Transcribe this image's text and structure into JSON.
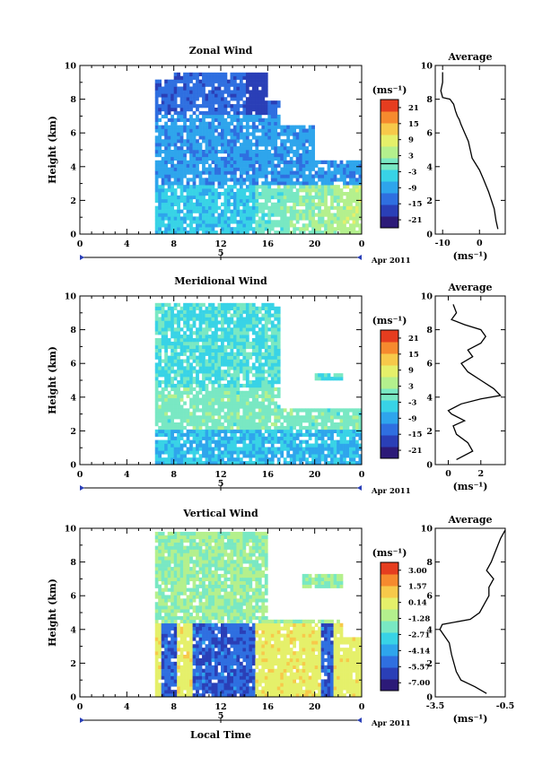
{
  "page": {
    "date_label": "Apr 2011",
    "day_label": "5",
    "xlabel": "Local Time",
    "ylabel": "Height (km)",
    "avg_title": "Average",
    "unit_label": "(ms⁻¹)"
  },
  "palette": [
    "#2c1a78",
    "#2a3fb7",
    "#2f6fe0",
    "#2ea5ec",
    "#38d3e6",
    "#79e8c3",
    "#b4f08d",
    "#e5f06a",
    "#f7c94a",
    "#f68a2e",
    "#e53d1f"
  ],
  "chart_data": [
    {
      "type": "heatmap",
      "title": "Zonal Wind",
      "xlabel": "",
      "ylabel": "Height (km)",
      "xlim": [
        0,
        24
      ],
      "ylim": [
        0,
        10
      ],
      "xticks": [
        "0",
        "4",
        "8",
        "12",
        "16",
        "20",
        "0"
      ],
      "yticks": [
        "0",
        "2",
        "4",
        "6",
        "8",
        "10"
      ],
      "colorbar": {
        "unit": "(ms⁻¹)",
        "ticks": [
          "21",
          "15",
          "9",
          "3",
          "-3",
          "-9",
          "-15",
          "-21"
        ],
        "range": [
          -24,
          24
        ],
        "zero_line": 0
      },
      "profile": {
        "title": "Average",
        "xlim": [
          -12,
          7
        ],
        "xticks": [
          "-10",
          "0"
        ],
        "xtick_values": [
          -10,
          0
        ],
        "ylim": [
          0,
          10
        ],
        "yticks": [
          "0",
          "2",
          "4",
          "6",
          "8",
          "10"
        ],
        "xlabel": "(ms⁻¹)",
        "x": [
          5,
          4.5,
          4,
          2.5,
          1,
          0,
          -2,
          -2.5,
          -3,
          -4,
          -5,
          -5.5,
          -6,
          -6.5,
          -7,
          -8,
          -10,
          -10.5,
          -10,
          -10,
          -10
        ],
        "y": [
          0.3,
          0.8,
          1.5,
          2.5,
          3.3,
          3.8,
          4.5,
          5.0,
          5.5,
          6.0,
          6.5,
          6.8,
          7.0,
          7.3,
          7.7,
          8.0,
          8.1,
          8.5,
          9.0,
          9.4,
          9.6
        ]
      }
    },
    {
      "type": "heatmap",
      "title": "Meridional Wind",
      "xlabel": "",
      "ylabel": "Height (km)",
      "xlim": [
        0,
        24
      ],
      "ylim": [
        0,
        10
      ],
      "xticks": [
        "0",
        "4",
        "8",
        "12",
        "16",
        "20",
        "0"
      ],
      "yticks": [
        "0",
        "2",
        "4",
        "6",
        "8",
        "10"
      ],
      "colorbar": {
        "unit": "(ms⁻¹)",
        "ticks": [
          "21",
          "15",
          "9",
          "3",
          "-3",
          "-9",
          "-15",
          "-21"
        ],
        "range": [
          -24,
          24
        ],
        "zero_line": 0
      },
      "profile": {
        "title": "Average",
        "xlim": [
          -0.8,
          3.5
        ],
        "xticks": [
          "0",
          "2"
        ],
        "xtick_values": [
          0,
          2
        ],
        "ylim": [
          0,
          10
        ],
        "yticks": [
          "0",
          "2",
          "4",
          "6",
          "8",
          "10"
        ],
        "xlabel": "(ms⁻¹)",
        "x": [
          0.5,
          1.5,
          1.2,
          0.5,
          0.3,
          1.0,
          0.2,
          0.0,
          0.8,
          2.0,
          3.2,
          2.8,
          2.0,
          1.2,
          0.8,
          1.5,
          1.2,
          2.0,
          2.3,
          2.0,
          1.0,
          0.2,
          0.5,
          0.3
        ],
        "y": [
          0.3,
          0.8,
          1.3,
          1.8,
          2.3,
          2.6,
          3.0,
          3.2,
          3.6,
          3.9,
          4.1,
          4.5,
          5.0,
          5.5,
          6.0,
          6.4,
          6.8,
          7.2,
          7.6,
          8.0,
          8.3,
          8.6,
          9.0,
          9.5
        ]
      }
    },
    {
      "type": "heatmap",
      "title": "Vertical Wind",
      "xlabel": "Local Time",
      "ylabel": "Height (km)",
      "xlim": [
        0,
        24
      ],
      "ylim": [
        0,
        10
      ],
      "xticks": [
        "0",
        "4",
        "8",
        "12",
        "16",
        "20",
        "0"
      ],
      "yticks": [
        "0",
        "2",
        "4",
        "6",
        "8",
        "10"
      ],
      "colorbar": {
        "unit": "(ms⁻¹)",
        "ticks": [
          "3.00",
          "1.57",
          "0.14",
          "-1.28",
          "-2.71",
          "-4.14",
          "-5.57",
          "-7.00"
        ],
        "range": [
          -7.7,
          3.7
        ],
        "zero_line": null
      },
      "profile": {
        "title": "Average",
        "xlim": [
          -3.5,
          -0.5
        ],
        "xticks": [
          "-3.5",
          "-0.5"
        ],
        "xtick_values": [
          -3.5,
          -0.5
        ],
        "ylim": [
          0,
          10
        ],
        "yticks": [
          "0",
          "2",
          "4",
          "6",
          "8",
          "10"
        ],
        "xlabel": "(ms⁻¹)",
        "x": [
          -1.3,
          -1.8,
          -2.4,
          -2.6,
          -2.8,
          -2.9,
          -3.3,
          -3.2,
          -2.0,
          -1.6,
          -1.4,
          -1.2,
          -1.2,
          -1.0,
          -1.3,
          -1.1,
          -0.9,
          -0.7,
          -0.5
        ],
        "y": [
          0.2,
          0.6,
          1.0,
          1.5,
          2.5,
          3.2,
          4.0,
          4.3,
          4.6,
          5.0,
          5.5,
          6.0,
          6.5,
          7.0,
          7.5,
          8.0,
          8.7,
          9.4,
          9.9
        ]
      }
    }
  ]
}
